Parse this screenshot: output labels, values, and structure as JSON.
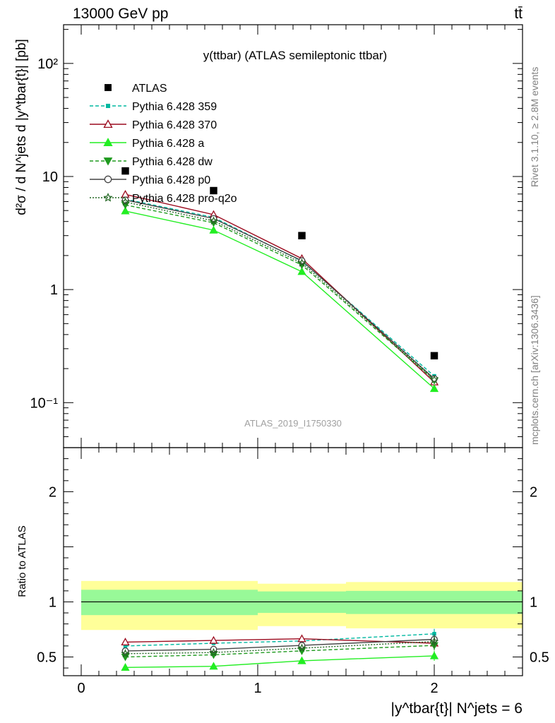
{
  "header": {
    "left": "13000 GeV pp",
    "right": "tt̄"
  },
  "side_labels": {
    "rivet": "Rivet 3.1.10, ≥ 2.8M events",
    "mcplots": "mcplots.cern.ch [arXiv:1306.3436]"
  },
  "watermark": "ATLAS_2019_I1750330",
  "chart_data": [
    {
      "type": "line",
      "title": "y(ttbar) (ATLAS semileptonic ttbar)",
      "ylabel": "d²σ / d N^jets d |y^tbar{t}| [pb]",
      "yscale": "log",
      "xlim": [
        -0.1,
        2.5
      ],
      "ylim": [
        0.04,
        220
      ],
      "yticks": [
        {
          "value": 0.1,
          "label": "10⁻¹"
        },
        {
          "value": 1,
          "label": "1"
        },
        {
          "value": 10,
          "label": "10"
        },
        {
          "value": 100,
          "label": "10²"
        }
      ],
      "x": [
        0.25,
        0.75,
        1.25,
        2.0
      ],
      "data": {
        "name": "ATLAS",
        "values": [
          11.2,
          7.5,
          3.0,
          0.26
        ],
        "color": "#000000"
      },
      "series": [
        {
          "name": "Pythia 6.428 359",
          "values": [
            6.3,
            4.35,
            1.78,
            0.172
          ],
          "color": "#00b8a0",
          "dash": "5,3",
          "marker": "square"
        },
        {
          "name": "Pythia 6.428 370",
          "values": [
            6.95,
            4.6,
            1.88,
            0.152
          ],
          "color": "#9b0a1e",
          "dash": "",
          "marker": "triangle-open"
        },
        {
          "name": "Pythia 6.428 a",
          "values": [
            4.95,
            3.35,
            1.44,
            0.133
          ],
          "color": "#22ee22",
          "dash": "",
          "marker": "triangle"
        },
        {
          "name": "Pythia 6.428 dw",
          "values": [
            5.6,
            3.9,
            1.65,
            0.158
          ],
          "color": "#1f9a1f",
          "dash": "5,3",
          "marker": "triangle-down"
        },
        {
          "name": "Pythia 6.428 p0",
          "values": [
            6.2,
            4.25,
            1.8,
            0.163
          ],
          "color": "#444444",
          "dash": "",
          "marker": "circle-open"
        },
        {
          "name": "Pythia 6.428 pro-q2o",
          "values": [
            5.95,
            4.05,
            1.72,
            0.16
          ],
          "color": "#226622",
          "dash": "2,2",
          "marker": "star"
        }
      ]
    },
    {
      "type": "line",
      "ylabel": "Ratio to ATLAS",
      "xlabel": "|y^tbar{t}| N^jets = 6",
      "xlim": [
        -0.1,
        2.5
      ],
      "ylim": [
        0.33,
        2.4
      ],
      "yticks": [
        {
          "value": 0.5,
          "label": "0.5"
        },
        {
          "value": 1,
          "label": "1"
        },
        {
          "value": 2,
          "label": "2"
        }
      ],
      "xticks": [
        {
          "value": 0,
          "label": "0"
        },
        {
          "value": 1,
          "label": "1"
        },
        {
          "value": 2,
          "label": "2"
        }
      ],
      "x": [
        0.25,
        0.75,
        1.25,
        2.0
      ],
      "bands": [
        {
          "x0": 0,
          "x1": 1,
          "outer": [
            0.745,
            1.19
          ],
          "inner": [
            0.88,
            1.11
          ]
        },
        {
          "x0": 1,
          "x1": 1.5,
          "outer": [
            0.78,
            1.165
          ],
          "inner": [
            0.9,
            1.095
          ]
        },
        {
          "x0": 1.5,
          "x1": 2.5,
          "outer": [
            0.76,
            1.18
          ],
          "inner": [
            0.89,
            1.1
          ]
        }
      ],
      "series": [
        {
          "name": "Pythia 6.428 359",
          "values": [
            0.6,
            0.625,
            0.645,
            0.71
          ],
          "color": "#00b8a0",
          "dash": "5,3",
          "marker": "square"
        },
        {
          "name": "Pythia 6.428 370",
          "values": [
            0.635,
            0.65,
            0.665,
            0.625
          ],
          "color": "#9b0a1e",
          "dash": "",
          "marker": "triangle-open"
        },
        {
          "name": "Pythia 6.428 a",
          "values": [
            0.405,
            0.415,
            0.465,
            0.51
          ],
          "color": "#22ee22",
          "dash": "",
          "marker": "triangle"
        },
        {
          "name": "Pythia 6.428 dw",
          "values": [
            0.5,
            0.52,
            0.555,
            0.605
          ],
          "color": "#1f9a1f",
          "dash": "5,3",
          "marker": "triangle-down"
        },
        {
          "name": "Pythia 6.428 p0",
          "values": [
            0.555,
            0.57,
            0.605,
            0.66
          ],
          "color": "#444444",
          "dash": "",
          "marker": "circle-open"
        },
        {
          "name": "Pythia 6.428 pro-q2o",
          "values": [
            0.53,
            0.54,
            0.58,
            0.64
          ],
          "color": "#226622",
          "dash": "2,2",
          "marker": "star"
        }
      ]
    }
  ]
}
